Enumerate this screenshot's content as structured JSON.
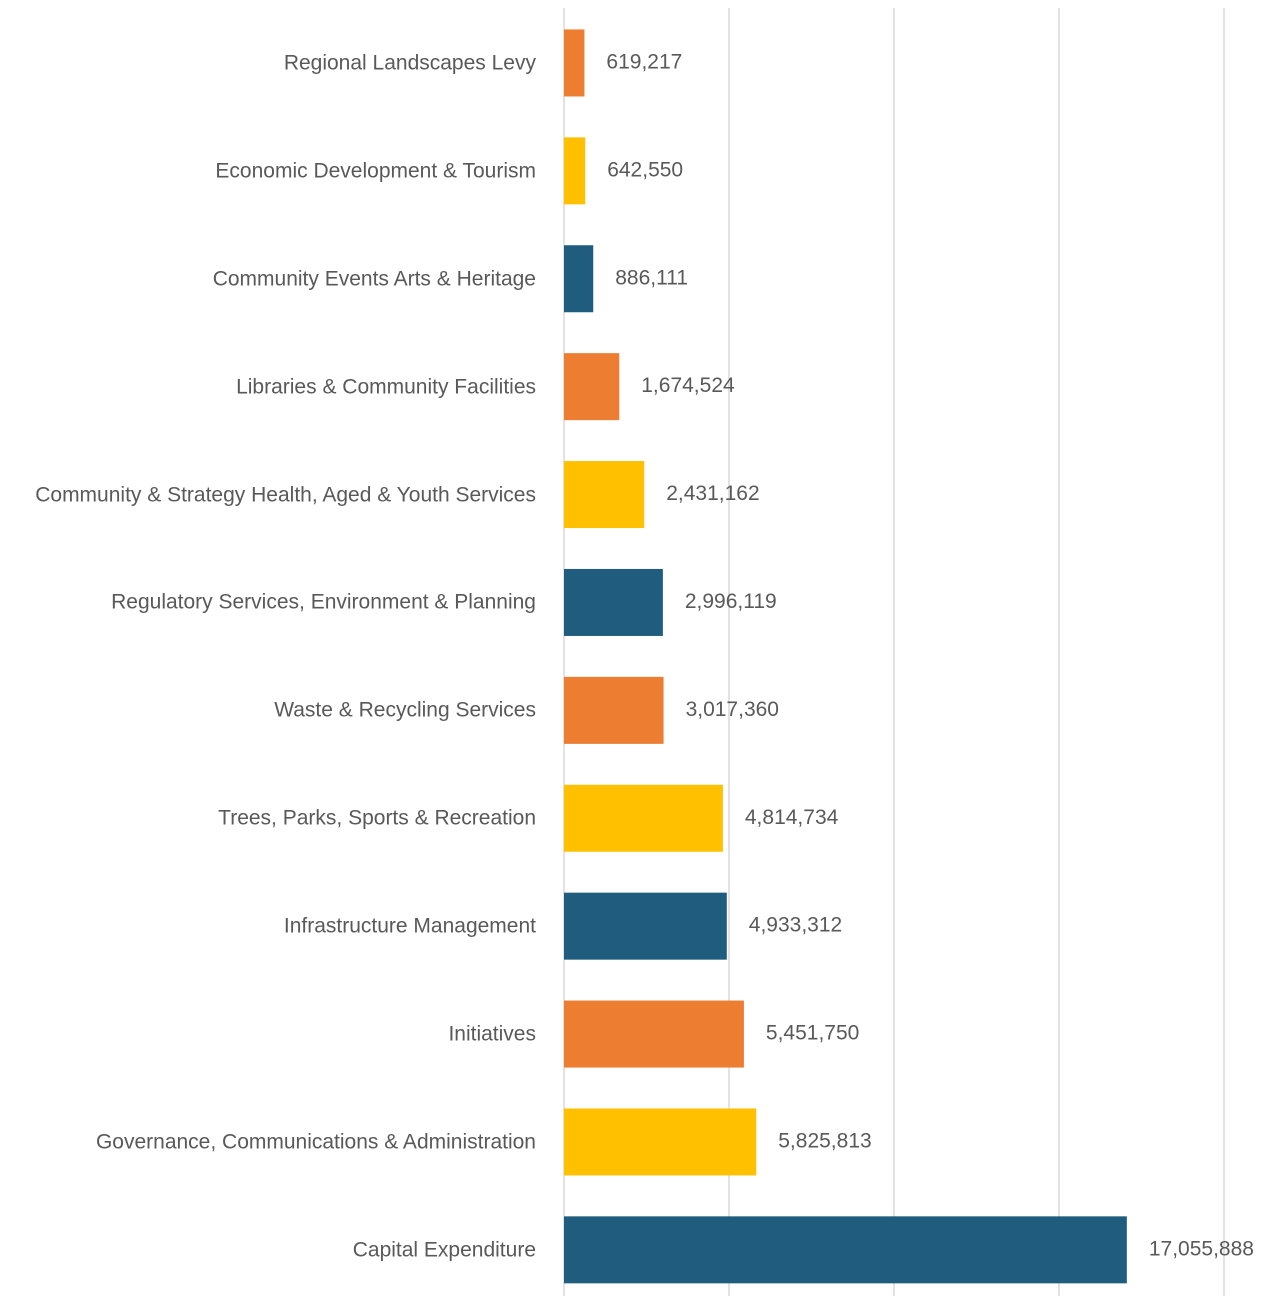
{
  "chart_data": {
    "type": "hbar",
    "categories": [
      "Regional Landscapes Levy",
      "Economic Development & Tourism",
      "Community Events Arts & Heritage",
      "Libraries & Community Facilities",
      "Community & Strategy Health, Aged & Youth Services",
      "Regulatory Services, Environment & Planning",
      "Waste & Recycling Services",
      "Trees, Parks, Sports & Recreation",
      "Infrastructure Management",
      "Initiatives",
      "Governance, Communications & Administration",
      "Capital Expenditure"
    ],
    "values": [
      619217,
      642550,
      886111,
      1674524,
      2431162,
      2996119,
      3017360,
      4814734,
      4933312,
      5451750,
      5825813,
      17055888
    ],
    "value_labels": [
      "619,217",
      "642,550",
      "886,111",
      "1,674,524",
      "2,431,162",
      "2,996,119",
      "3,017,360",
      "4,814,734",
      "4,933,312",
      "5,451,750",
      "5,825,813",
      "17,055,888"
    ],
    "colors": [
      "#ed7d31",
      "#ffc000",
      "#1f5c7d",
      "#ed7d31",
      "#ffc000",
      "#1f5c7d",
      "#ed7d31",
      "#ffc000",
      "#1f5c7d",
      "#ed7d31",
      "#ffc000",
      "#1f5c7d"
    ],
    "xlim": [
      0,
      20000000
    ],
    "xticks": [
      0,
      5000000,
      10000000,
      15000000,
      20000000
    ],
    "grid": true
  }
}
